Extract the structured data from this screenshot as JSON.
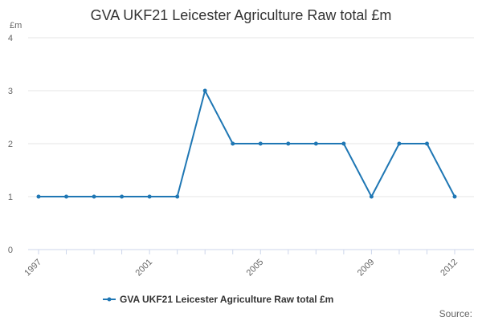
{
  "chart_data": {
    "type": "line",
    "title": "GVA UKF21 Leicester Agriculture Raw total £m",
    "ylabel": "£m",
    "xlabel": "",
    "x": [
      1997,
      1998,
      1999,
      2000,
      2001,
      2002,
      2003,
      2004,
      2005,
      2006,
      2007,
      2008,
      2009,
      2010,
      2011,
      2012
    ],
    "x_tick_labels": [
      "1997",
      "2001",
      "2005",
      "2009",
      "2012"
    ],
    "y_tick_labels": [
      "0",
      "1",
      "2",
      "3",
      "4"
    ],
    "ylim": [
      0,
      4
    ],
    "grid": true,
    "legend_position": "bottom-center",
    "series": [
      {
        "name": "GVA UKF21 Leicester Agriculture Raw total £m",
        "color": "#1f77b4",
        "values": [
          1,
          1,
          1,
          1,
          1,
          1,
          3,
          2,
          2,
          2,
          2,
          2,
          1,
          2,
          2,
          1
        ]
      }
    ],
    "source_label": "Source:"
  }
}
